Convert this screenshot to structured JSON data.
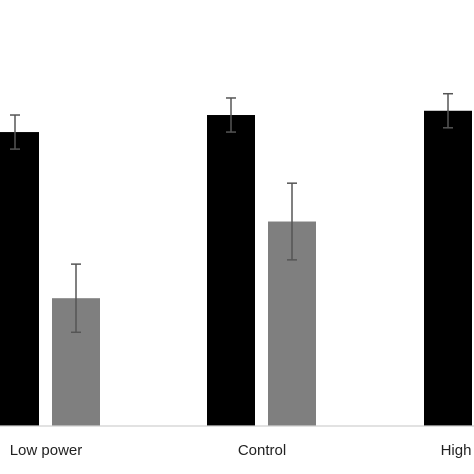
{
  "chart_data": {
    "type": "bar",
    "categories": [
      "Low power",
      "Control",
      "High"
    ],
    "series": [
      {
        "values": [
          69,
          73,
          74
        ],
        "error": [
          4,
          4,
          4
        ],
        "color": "#000000"
      },
      {
        "values": [
          30,
          48,
          null
        ],
        "error": [
          8,
          9,
          null
        ],
        "color": "#7f7f7f"
      }
    ],
    "ylim": [
      0,
      100
    ],
    "title": "",
    "xlabel": "",
    "ylabel": "",
    "grid": false,
    "legend": "none"
  }
}
